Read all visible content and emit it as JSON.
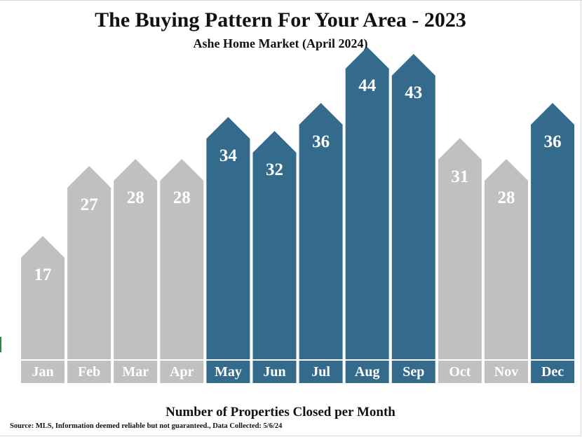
{
  "header": {
    "title": "The Buying Pattern For Your Area - 2023",
    "subtitle": "Ashe Home Market (April 2024)"
  },
  "footer": {
    "caption": "Number of Properties Closed per Month",
    "source": "Source: MLS, Information deemed reliable but not guaranteed., Data Collected: 5/6/24"
  },
  "colors": {
    "highlight": "#346b8c",
    "muted": "#c0c0c0",
    "label_text": "#ffffff"
  },
  "chart_data": {
    "type": "bar",
    "title": "The Buying Pattern For Your Area - 2023",
    "subtitle": "Ashe Home Market (April 2024)",
    "xlabel": "Number of Properties Closed per Month",
    "ylabel": "",
    "categories": [
      "Jan",
      "Feb",
      "Mar",
      "Apr",
      "May",
      "Jun",
      "Jul",
      "Aug",
      "Sep",
      "Oct",
      "Nov",
      "Dec"
    ],
    "values": [
      17,
      27,
      28,
      28,
      34,
      32,
      36,
      44,
      43,
      31,
      28,
      36
    ],
    "highlighted": [
      false,
      false,
      false,
      false,
      true,
      true,
      true,
      true,
      true,
      false,
      false,
      true
    ],
    "data_labels": true,
    "grid": false,
    "legend": "none"
  }
}
